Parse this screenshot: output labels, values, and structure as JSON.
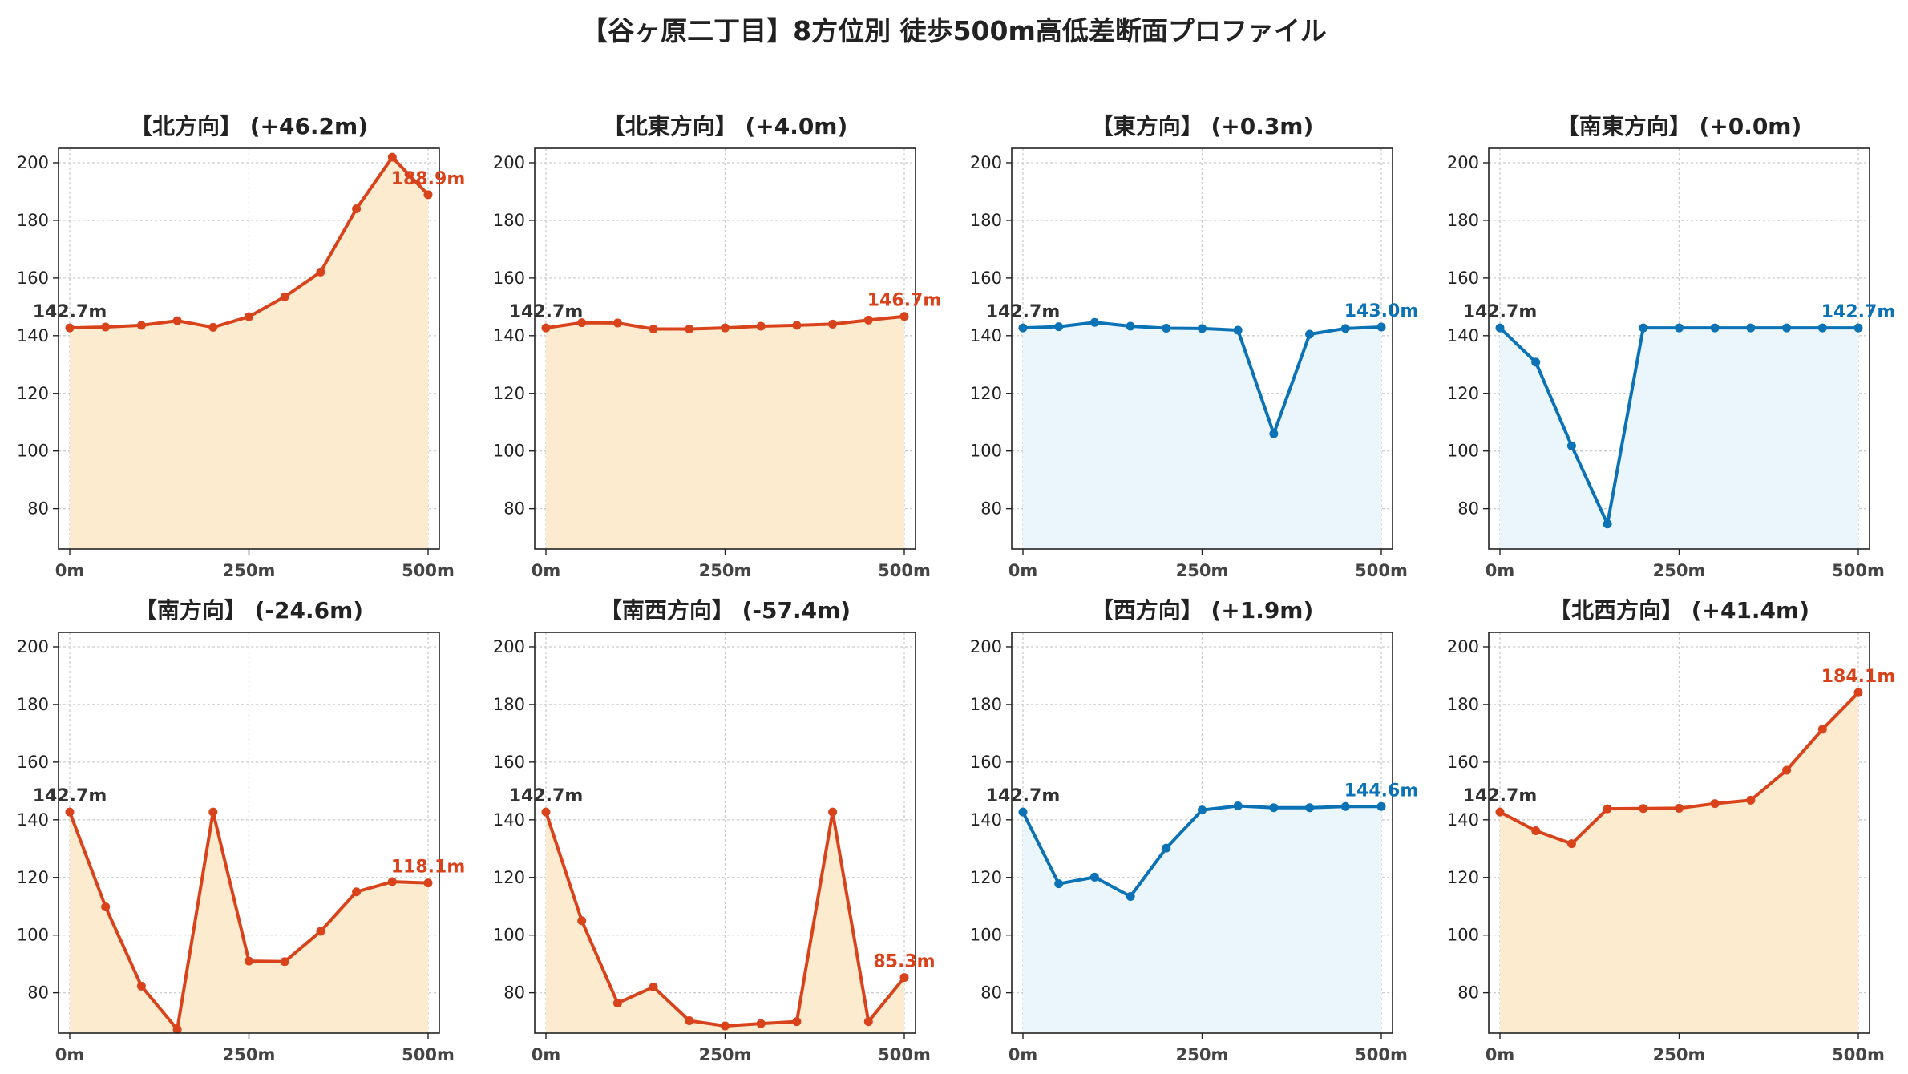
{
  "title": "【谷ヶ原二丁目】8方位別 徒歩500m高低差断面プロファイル",
  "colors": {
    "up_line": "#D9431B",
    "up_fill": "#FDEBD0",
    "flat_line": "#0A72B5",
    "flat_fill": "#EAF6FC",
    "start_label": "#333333",
    "grid": "#cccccc"
  },
  "chart_data": [
    {
      "type": "area",
      "title": "【北方向】 (+46.2m)",
      "color_key": "up",
      "x": [
        0,
        50,
        100,
        150,
        200,
        250,
        300,
        350,
        400,
        450,
        500
      ],
      "values": [
        142.7,
        143.0,
        143.6,
        145.2,
        142.9,
        146.6,
        153.5,
        162.1,
        184.0,
        201.9,
        188.9
      ],
      "start_label": "142.7m",
      "end_label": "188.9m",
      "ylim": [
        66,
        205
      ],
      "yticks": [
        80,
        100,
        120,
        140,
        160,
        180,
        200
      ],
      "xticks": [
        "0m",
        "250m",
        "500m"
      ],
      "grid": true
    },
    {
      "type": "area",
      "title": "【北東方向】 (+4.0m)",
      "color_key": "up",
      "x": [
        0,
        50,
        100,
        150,
        200,
        250,
        300,
        350,
        400,
        450,
        500
      ],
      "values": [
        142.7,
        144.5,
        144.4,
        142.3,
        142.3,
        142.7,
        143.3,
        143.6,
        144.0,
        145.4,
        146.7
      ],
      "start_label": "142.7m",
      "end_label": "146.7m",
      "ylim": [
        66,
        205
      ],
      "yticks": [
        80,
        100,
        120,
        140,
        160,
        180,
        200
      ],
      "xticks": [
        "0m",
        "250m",
        "500m"
      ],
      "grid": true
    },
    {
      "type": "area",
      "title": "【東方向】 (+0.3m)",
      "color_key": "flat",
      "x": [
        0,
        50,
        100,
        150,
        200,
        250,
        300,
        350,
        400,
        450,
        500
      ],
      "values": [
        142.7,
        143.1,
        144.6,
        143.3,
        142.6,
        142.5,
        141.9,
        106.0,
        140.5,
        142.5,
        143.0
      ],
      "start_label": "142.7m",
      "end_label": "143.0m",
      "ylim": [
        66,
        205
      ],
      "yticks": [
        80,
        100,
        120,
        140,
        160,
        180,
        200
      ],
      "xticks": [
        "0m",
        "250m",
        "500m"
      ],
      "grid": true
    },
    {
      "type": "area",
      "title": "【南東方向】 (+0.0m)",
      "color_key": "flat",
      "x": [
        0,
        50,
        100,
        150,
        200,
        250,
        300,
        350,
        400,
        450,
        500
      ],
      "values": [
        142.7,
        130.8,
        101.8,
        74.7,
        142.7,
        142.7,
        142.7,
        142.7,
        142.7,
        142.7,
        142.7
      ],
      "start_label": "142.7m",
      "end_label": "142.7m",
      "ylim": [
        66,
        205
      ],
      "yticks": [
        80,
        100,
        120,
        140,
        160,
        180,
        200
      ],
      "xticks": [
        "0m",
        "250m",
        "500m"
      ],
      "grid": true
    },
    {
      "type": "area",
      "title": "【南方向】 (-24.6m)",
      "color_key": "up",
      "x": [
        0,
        50,
        100,
        150,
        200,
        250,
        300,
        350,
        400,
        450,
        500
      ],
      "values": [
        142.7,
        109.8,
        82.3,
        67.3,
        142.7,
        91.0,
        90.8,
        101.3,
        115.0,
        118.5,
        118.1
      ],
      "start_label": "142.7m",
      "end_label": "118.1m",
      "ylim": [
        66,
        205
      ],
      "yticks": [
        80,
        100,
        120,
        140,
        160,
        180,
        200
      ],
      "xticks": [
        "0m",
        "250m",
        "500m"
      ],
      "grid": true
    },
    {
      "type": "area",
      "title": "【南西方向】 (-57.4m)",
      "color_key": "up",
      "x": [
        0,
        50,
        100,
        150,
        200,
        250,
        300,
        350,
        400,
        450,
        500
      ],
      "values": [
        142.7,
        105.0,
        76.4,
        82.0,
        70.3,
        68.5,
        69.3,
        70.0,
        142.7,
        70.0,
        85.3
      ],
      "start_label": "142.7m",
      "end_label": "85.3m",
      "ylim": [
        66,
        205
      ],
      "yticks": [
        80,
        100,
        120,
        140,
        160,
        180,
        200
      ],
      "xticks": [
        "0m",
        "250m",
        "500m"
      ],
      "grid": true
    },
    {
      "type": "area",
      "title": "【西方向】 (+1.9m)",
      "color_key": "flat",
      "x": [
        0,
        50,
        100,
        150,
        200,
        250,
        300,
        350,
        400,
        450,
        500
      ],
      "values": [
        142.7,
        117.8,
        120.1,
        113.4,
        130.2,
        143.4,
        144.8,
        144.2,
        144.2,
        144.6,
        144.6
      ],
      "start_label": "142.7m",
      "end_label": "144.6m",
      "ylim": [
        66,
        205
      ],
      "yticks": [
        80,
        100,
        120,
        140,
        160,
        180,
        200
      ],
      "xticks": [
        "0m",
        "250m",
        "500m"
      ],
      "grid": true
    },
    {
      "type": "area",
      "title": "【北西方向】 (+41.4m)",
      "color_key": "up",
      "x": [
        0,
        50,
        100,
        150,
        200,
        250,
        300,
        350,
        400,
        450,
        500
      ],
      "values": [
        142.7,
        136.2,
        131.7,
        143.8,
        143.9,
        144.0,
        145.6,
        146.8,
        157.2,
        171.4,
        184.1
      ],
      "start_label": "142.7m",
      "end_label": "184.1m",
      "ylim": [
        66,
        205
      ],
      "yticks": [
        80,
        100,
        120,
        140,
        160,
        180,
        200
      ],
      "xticks": [
        "0m",
        "250m",
        "500m"
      ],
      "grid": true
    }
  ]
}
